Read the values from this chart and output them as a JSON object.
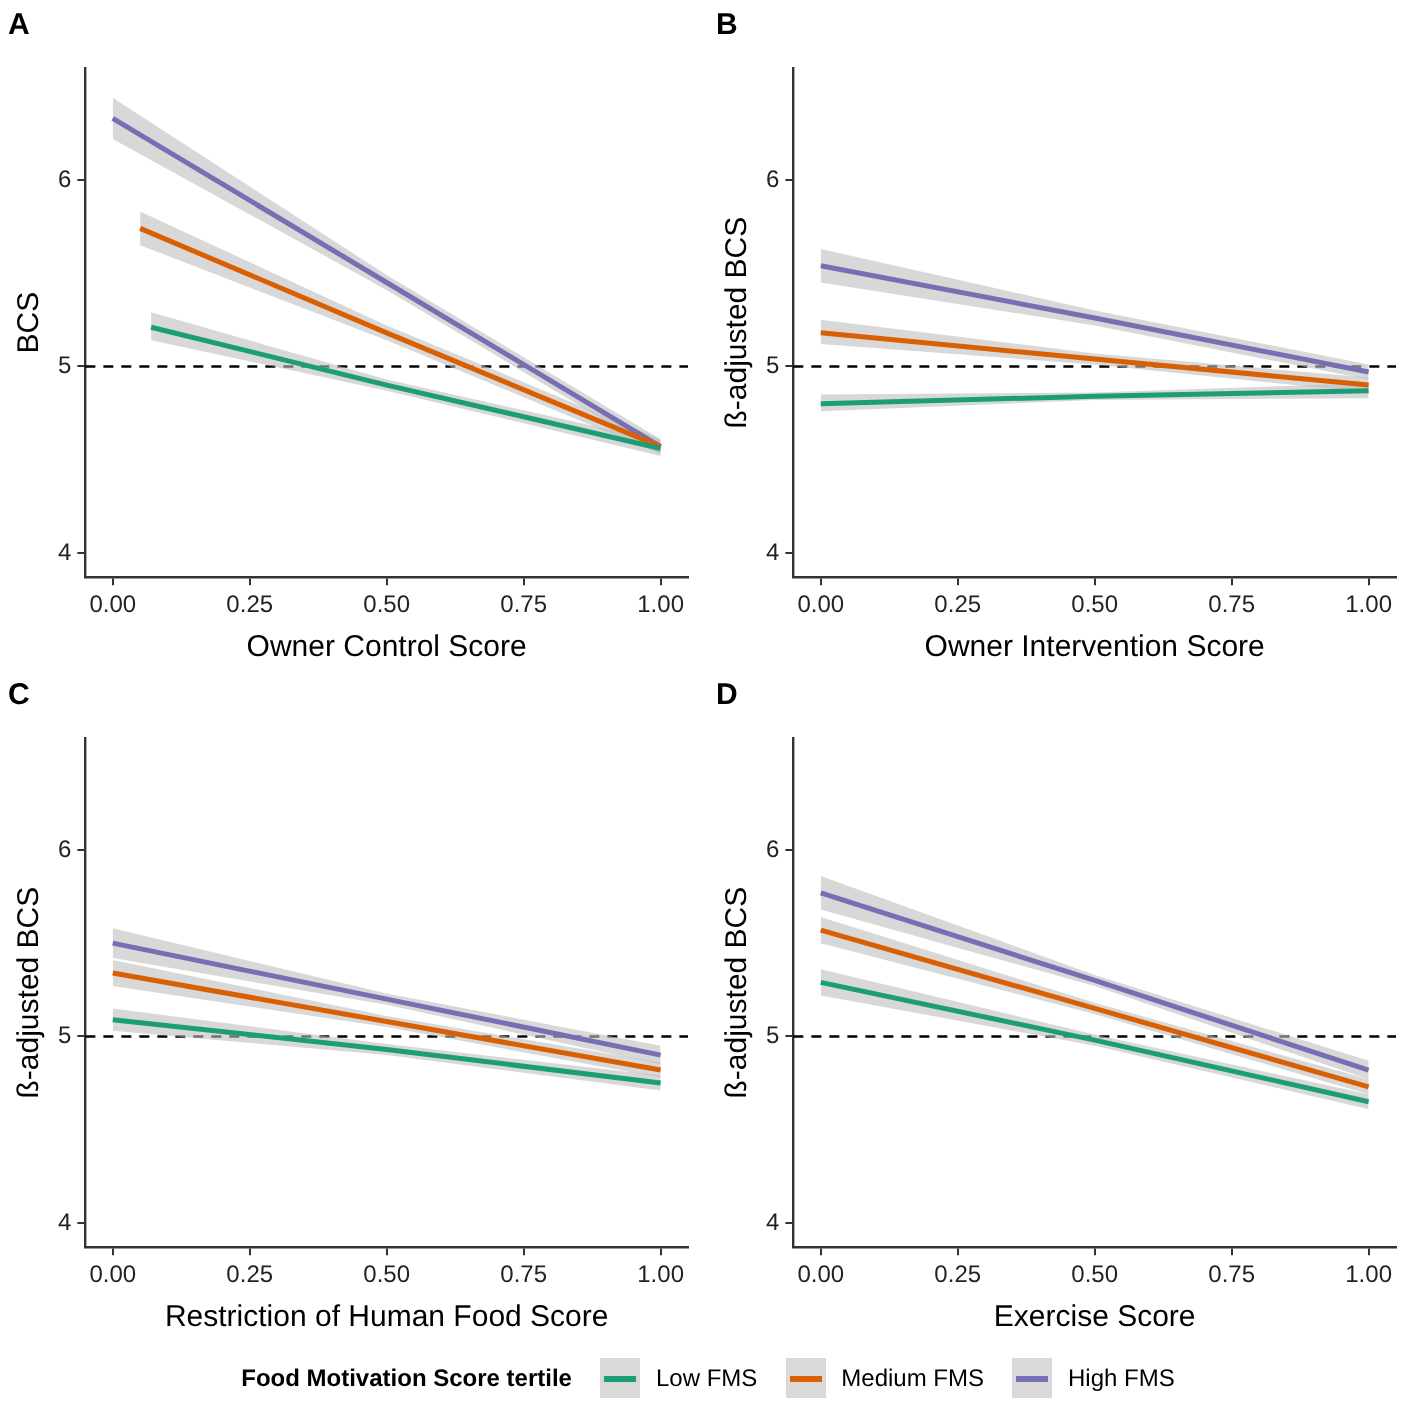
{
  "chart_data": [
    {
      "type": "line",
      "title": "A",
      "xlabel": "Owner Control Score",
      "ylabel": "BCS",
      "xlim": [
        -0.05,
        1.05
      ],
      "ylim": [
        3.87,
        6.6
      ],
      "xticks": [
        {
          "value": 0,
          "label": "0.00"
        },
        {
          "value": 0.25,
          "label": "0.25"
        },
        {
          "value": 0.5,
          "label": "0.50"
        },
        {
          "value": 0.75,
          "label": "0.75"
        },
        {
          "value": 1,
          "label": "1.00"
        }
      ],
      "yticks": [
        4,
        5,
        6
      ],
      "grid": false,
      "legend": "bottom",
      "legend_title": "Food Motivation Score tertile",
      "ref_lines": [
        {
          "axis": "y",
          "value": 5,
          "line_style": "dashed",
          "color": "#000000"
        }
      ],
      "series": [
        {
          "name": "Low FMS",
          "color": "#1b9e77",
          "x": [
            0.07,
            0.5,
            1
          ],
          "values": [
            5.21,
            4.9,
            4.56
          ],
          "lower": [
            5.14,
            4.87,
            4.52
          ],
          "upper": [
            5.29,
            4.93,
            4.6
          ]
        },
        {
          "name": "Medium FMS",
          "color": "#d95f02",
          "x": [
            0.05,
            0.5,
            1
          ],
          "values": [
            5.74,
            5.18,
            4.57
          ],
          "lower": [
            5.65,
            5.14,
            4.53
          ],
          "upper": [
            5.83,
            5.22,
            4.61
          ]
        },
        {
          "name": "High FMS",
          "color": "#7570b3",
          "x": [
            0,
            0.5,
            1
          ],
          "values": [
            6.33,
            5.45,
            4.57
          ],
          "lower": [
            6.22,
            5.41,
            4.53
          ],
          "upper": [
            6.44,
            5.49,
            4.61
          ]
        }
      ]
    },
    {
      "type": "line",
      "title": "B",
      "xlabel": "Owner Intervention Score",
      "ylabel": "ß-adjusted BCS",
      "xlim": [
        -0.05,
        1.05
      ],
      "ylim": [
        3.87,
        6.6
      ],
      "xticks": [
        {
          "value": 0,
          "label": "0.00"
        },
        {
          "value": 0.25,
          "label": "0.25"
        },
        {
          "value": 0.5,
          "label": "0.50"
        },
        {
          "value": 0.75,
          "label": "0.75"
        },
        {
          "value": 1,
          "label": "1.00"
        }
      ],
      "yticks": [
        4,
        5,
        6
      ],
      "grid": false,
      "ref_lines": [
        {
          "axis": "y",
          "value": 5,
          "line_style": "dashed",
          "color": "#000000"
        }
      ],
      "series": [
        {
          "color": "#1b9e77",
          "x": [
            0,
            0.5,
            1
          ],
          "values": [
            4.8,
            4.84,
            4.87
          ],
          "lower": [
            4.76,
            4.82,
            4.83
          ],
          "upper": [
            4.85,
            4.86,
            4.91
          ]
        },
        {
          "color": "#d95f02",
          "x": [
            0,
            0.5,
            1
          ],
          "values": [
            5.18,
            5.04,
            4.9
          ],
          "lower": [
            5.12,
            5.01,
            4.86
          ],
          "upper": [
            5.25,
            5.07,
            4.94
          ]
        },
        {
          "color": "#7570b3",
          "x": [
            0,
            0.5,
            1
          ],
          "values": [
            5.54,
            5.26,
            4.97
          ],
          "lower": [
            5.45,
            5.22,
            4.93
          ],
          "upper": [
            5.63,
            5.3,
            5.01
          ]
        }
      ]
    },
    {
      "type": "line",
      "title": "C",
      "xlabel": "Restriction of Human Food Score",
      "ylabel": "ß-adjusted BCS",
      "xlim": [
        -0.05,
        1.05
      ],
      "ylim": [
        3.87,
        6.6
      ],
      "xticks": [
        {
          "value": 0,
          "label": "0.00"
        },
        {
          "value": 0.25,
          "label": "0.25"
        },
        {
          "value": 0.5,
          "label": "0.50"
        },
        {
          "value": 0.75,
          "label": "0.75"
        },
        {
          "value": 1,
          "label": "1.00"
        }
      ],
      "yticks": [
        4,
        5,
        6
      ],
      "grid": false,
      "ref_lines": [
        {
          "axis": "y",
          "value": 5,
          "line_style": "dashed",
          "color": "#000000"
        }
      ],
      "series": [
        {
          "color": "#1b9e77",
          "x": [
            0,
            0.5,
            1
          ],
          "values": [
            5.09,
            4.93,
            4.75
          ],
          "lower": [
            5.03,
            4.9,
            4.71
          ],
          "upper": [
            5.15,
            4.96,
            4.79
          ]
        },
        {
          "color": "#d95f02",
          "x": [
            0,
            0.5,
            1
          ],
          "values": [
            5.34,
            5.08,
            4.82
          ],
          "lower": [
            5.27,
            5.05,
            4.78
          ],
          "upper": [
            5.41,
            5.11,
            4.86
          ]
        },
        {
          "color": "#7570b3",
          "x": [
            0,
            0.5,
            1
          ],
          "values": [
            5.5,
            5.2,
            4.9
          ],
          "lower": [
            5.42,
            5.17,
            4.85
          ],
          "upper": [
            5.58,
            5.23,
            4.95
          ]
        }
      ]
    },
    {
      "type": "line",
      "title": "D",
      "xlabel": "Exercise Score",
      "ylabel": "ß-adjusted BCS",
      "xlim": [
        -0.05,
        1.05
      ],
      "ylim": [
        3.87,
        6.6
      ],
      "xticks": [
        {
          "value": 0,
          "label": "0.00"
        },
        {
          "value": 0.25,
          "label": "0.25"
        },
        {
          "value": 0.5,
          "label": "0.50"
        },
        {
          "value": 0.75,
          "label": "0.75"
        },
        {
          "value": 1,
          "label": "1.00"
        }
      ],
      "yticks": [
        4,
        5,
        6
      ],
      "grid": false,
      "ref_lines": [
        {
          "axis": "y",
          "value": 5,
          "line_style": "dashed",
          "color": "#000000"
        }
      ],
      "series": [
        {
          "color": "#1b9e77",
          "x": [
            0,
            0.5,
            1
          ],
          "values": [
            5.29,
            4.98,
            4.65
          ],
          "lower": [
            5.22,
            4.95,
            4.61
          ],
          "upper": [
            5.36,
            5.01,
            4.69
          ]
        },
        {
          "color": "#d95f02",
          "x": [
            0,
            0.5,
            1
          ],
          "values": [
            5.57,
            5.15,
            4.73
          ],
          "lower": [
            5.5,
            5.12,
            4.69
          ],
          "upper": [
            5.64,
            5.18,
            4.77
          ]
        },
        {
          "color": "#7570b3",
          "x": [
            0,
            0.5,
            1
          ],
          "values": [
            5.77,
            5.3,
            4.82
          ],
          "lower": [
            5.68,
            5.27,
            4.77
          ],
          "upper": [
            5.86,
            5.33,
            4.87
          ]
        }
      ]
    }
  ]
}
